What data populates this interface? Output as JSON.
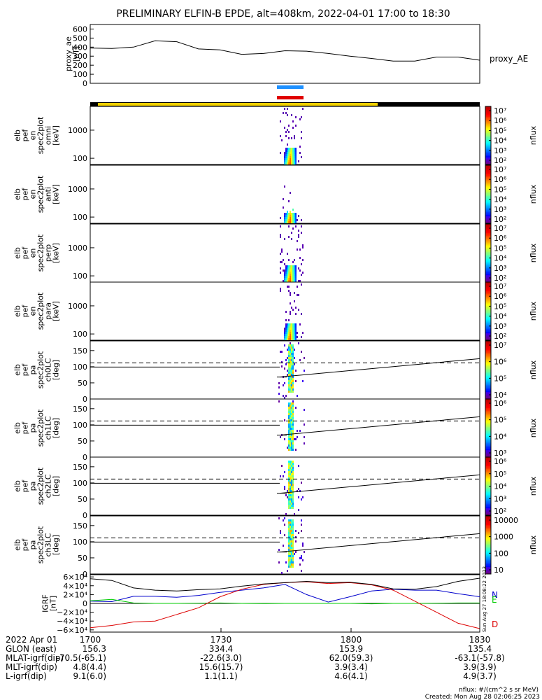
{
  "title": "PRELIMINARY ELFIN-B EPDE, alt=408km, 2022-04-01 17:00 to 18:30",
  "colors": {
    "day_bar": "#f0d000",
    "night_bar": "#000000",
    "science_blue": "#1e90ff",
    "science_red": "#e00000",
    "n_component": "#0000cc",
    "e_component": "#00cc00",
    "d_component": "#dd0000",
    "total_field": "#000000"
  },
  "chart_data": [
    {
      "type": "line",
      "id": "proxy_ae",
      "ylabel_lines": [
        "proxy_ae",
        "[nT]"
      ],
      "ylim": [
        0,
        650
      ],
      "yticks": [
        "0",
        "100",
        "200",
        "300",
        "400",
        "500",
        "600"
      ],
      "right_label": "proxy_AE",
      "x": [
        "17:00",
        "17:05",
        "17:10",
        "17:15",
        "17:20",
        "17:25",
        "17:30",
        "17:35",
        "17:40",
        "17:45",
        "17:50",
        "17:55",
        "18:00",
        "18:05",
        "18:10",
        "18:15",
        "18:20",
        "18:25",
        "18:30"
      ],
      "series": [
        {
          "values": [
            390,
            385,
            400,
            470,
            460,
            380,
            370,
            320,
            330,
            360,
            355,
            330,
            300,
            275,
            245,
            245,
            290,
            290,
            255
          ]
        }
      ]
    },
    {
      "type": "heatmap",
      "id": "en_omni",
      "ylabel_lines": [
        "elb",
        "pef",
        "en",
        "spec2plot",
        "omni",
        "[keV]"
      ],
      "yscale": "log",
      "ylim": [
        60,
        7000
      ],
      "yticks": [
        "100",
        "1000"
      ],
      "colorbar": {
        "label": "nflux",
        "ticks": [
          "10²",
          "10³",
          "10⁴",
          "10⁵",
          "10⁶",
          "10⁷"
        ],
        "range": [
          2,
          7
        ]
      }
    },
    {
      "type": "heatmap",
      "id": "en_anti",
      "ylabel_lines": [
        "elb",
        "pef",
        "en",
        "spec2plot",
        "anti",
        "[keV]"
      ],
      "yscale": "log",
      "ylim": [
        60,
        7000
      ],
      "yticks": [
        "100",
        "1000"
      ],
      "colorbar": {
        "label": "nflux",
        "ticks": [
          "10²",
          "10³",
          "10⁴",
          "10⁵",
          "10⁶",
          "10⁷"
        ],
        "range": [
          2,
          7
        ]
      }
    },
    {
      "type": "heatmap",
      "id": "en_perp",
      "ylabel_lines": [
        "elb",
        "pef",
        "en",
        "spec2plot",
        "perp",
        "[keV]"
      ],
      "yscale": "log",
      "ylim": [
        60,
        7000
      ],
      "yticks": [
        "100",
        "1000"
      ],
      "colorbar": {
        "label": "nflux",
        "ticks": [
          "10²",
          "10³",
          "10⁴",
          "10⁵",
          "10⁶",
          "10⁷"
        ],
        "range": [
          2,
          7
        ]
      }
    },
    {
      "type": "heatmap",
      "id": "en_para",
      "ylabel_lines": [
        "elb",
        "pef",
        "en",
        "spec2plot",
        "para",
        "[keV]"
      ],
      "yscale": "log",
      "ylim": [
        60,
        7000
      ],
      "yticks": [
        "100",
        "1000"
      ],
      "colorbar": {
        "label": "nflux",
        "ticks": [
          "10²",
          "10³",
          "10⁴",
          "10⁵",
          "10⁶",
          "10⁷"
        ],
        "range": [
          2,
          7
        ]
      }
    },
    {
      "type": "heatmap",
      "id": "pa_ch0",
      "ylabel_lines": [
        "elb",
        "pef",
        "pa",
        "spec2plot",
        "ch0LC",
        "[deg]"
      ],
      "ylim": [
        0,
        180
      ],
      "yticks": [
        "0",
        "50",
        "100",
        "150"
      ],
      "loss_cone_deg": [
        68,
        99
      ],
      "anti_loss_cone_deg": 112,
      "colorbar": {
        "label": "nflux",
        "ticks": [
          "10⁴",
          "10⁵",
          "10⁶",
          "10⁷"
        ],
        "range": [
          3.5,
          7
        ]
      }
    },
    {
      "type": "heatmap",
      "id": "pa_ch1",
      "ylabel_lines": [
        "elb",
        "pef",
        "pa",
        "spec2plot",
        "ch1LC",
        "[deg]"
      ],
      "ylim": [
        0,
        180
      ],
      "yticks": [
        "0",
        "50",
        "100",
        "150"
      ],
      "loss_cone_deg": [
        68,
        99
      ],
      "anti_loss_cone_deg": 112,
      "colorbar": {
        "label": "nflux",
        "ticks": [
          "10³",
          "10⁴",
          "10⁵",
          "10⁶"
        ],
        "range": [
          2.8,
          6.5
        ]
      }
    },
    {
      "type": "heatmap",
      "id": "pa_ch2",
      "ylabel_lines": [
        "elb",
        "pef",
        "pa",
        "spec2plot",
        "ch2LC",
        "[deg]"
      ],
      "ylim": [
        0,
        180
      ],
      "yticks": [
        "0",
        "50",
        "100",
        "150"
      ],
      "loss_cone_deg": [
        68,
        99
      ],
      "anti_loss_cone_deg": 112,
      "colorbar": {
        "label": "nflux",
        "ticks": [
          "10²",
          "10³",
          "10⁴",
          "10⁵",
          "10⁶"
        ],
        "range": [
          1.8,
          6.2
        ]
      }
    },
    {
      "type": "heatmap",
      "id": "pa_ch3",
      "ylabel_lines": [
        "elb",
        "pef",
        "pa",
        "spec2plot",
        "ch3LC",
        "[deg]"
      ],
      "ylim": [
        0,
        180
      ],
      "yticks": [
        "0",
        "50",
        "100",
        "150"
      ],
      "loss_cone_deg": [
        68,
        99
      ],
      "anti_loss_cone_deg": 112,
      "colorbar": {
        "label": "nflux",
        "ticks": [
          "10",
          "100",
          "1000",
          "10000"
        ],
        "range": [
          1,
          4.3
        ]
      }
    },
    {
      "type": "line",
      "id": "igrf",
      "ylabel_lines": [
        "IGRF",
        "[nT]"
      ],
      "ylim": [
        -65000,
        65000
      ],
      "yticks": [
        "−6×10⁴",
        "−4×10⁴",
        "−2×10⁴",
        "0",
        "2×10⁴",
        "4×10⁴",
        "6×10⁴"
      ],
      "x": [
        "17:00",
        "17:05",
        "17:10",
        "17:15",
        "17:20",
        "17:25",
        "17:30",
        "17:35",
        "17:40",
        "17:45",
        "17:50",
        "17:55",
        "18:00",
        "18:05",
        "18:10",
        "18:15",
        "18:20",
        "18:25",
        "18:30"
      ],
      "series": [
        {
          "name": "N",
          "values": [
            5000,
            4000,
            16000,
            16000,
            14000,
            18000,
            25000,
            30000,
            35000,
            43000,
            20000,
            3000,
            15000,
            28000,
            32000,
            30000,
            30000,
            22000,
            15000
          ]
        },
        {
          "name": "E",
          "values": [
            6000,
            9000,
            1000,
            0,
            0,
            500,
            1000,
            0,
            -500,
            0,
            0,
            0,
            0,
            -1000,
            0,
            0,
            500,
            1000,
            1000
          ]
        },
        {
          "name": "D",
          "values": [
            -55000,
            -50000,
            -42000,
            -40000,
            -25000,
            -10000,
            15000,
            32000,
            43000,
            47000,
            49000,
            45000,
            47000,
            42000,
            30000,
            5000,
            -20000,
            -45000,
            -57000
          ]
        },
        {
          "name": "",
          "values": [
            56000,
            52000,
            35000,
            30000,
            28000,
            31000,
            33000,
            39000,
            44000,
            47000,
            50000,
            47000,
            48000,
            43000,
            33000,
            32000,
            38000,
            50000,
            57000
          ]
        }
      ],
      "component_labels": [
        "N",
        "E",
        "D"
      ],
      "side_stamp": "Sun Aug 27 18:08:22 2023"
    }
  ],
  "xaxis": {
    "ticks": [
      "1700",
      "1730",
      "1800",
      "1830"
    ],
    "rows": [
      {
        "label": "2022 Apr 01",
        "values": [
          "",
          "",
          "",
          ""
        ]
      },
      {
        "label": "GLON (east)",
        "values": [
          "156.3",
          "334.4",
          "153.9",
          "135.4"
        ]
      },
      {
        "label": "MLAT-igrf(dip)",
        "values": [
          "-70.5(-65.1)",
          "-22.6(3.0)",
          "62.0(59.3)",
          "-63.1(-57.8)"
        ]
      },
      {
        "label": "MLT-igrf(dip)",
        "values": [
          "4.8(4.4)",
          "15.6(15.7)",
          "3.9(3.4)",
          "3.9(3.9)"
        ]
      },
      {
        "label": "L-igrf(dip)",
        "values": [
          "9.1(6.0)",
          "1.1(1.1)",
          "4.6(4.1)",
          "4.9(3.7)"
        ]
      }
    ]
  },
  "footer": {
    "units": "nflux: #/(cm^2 s sr MeV)",
    "created": "Created: Mon Aug 28 02:06:25 2023"
  }
}
